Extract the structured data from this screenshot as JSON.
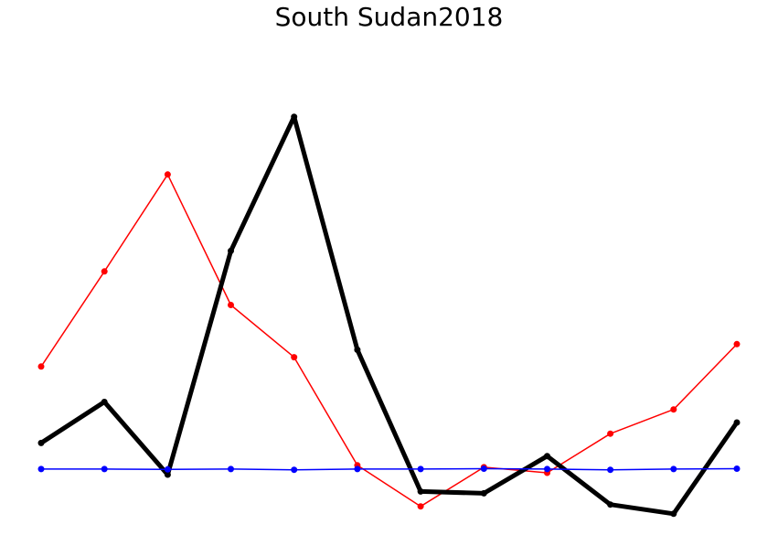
{
  "chart_data": {
    "type": "line",
    "title": "South Sudan2018",
    "x": [
      1,
      2,
      3,
      4,
      5,
      6,
      7,
      8,
      9,
      10,
      11,
      12
    ],
    "ylim": [
      -1.4,
      11.6
    ],
    "axes_visible": false,
    "grid": false,
    "series": [
      {
        "color": "#ff0000",
        "line_width": 1.5,
        "values": [
          2.75,
          5.3,
          7.9,
          4.4,
          3.0,
          0.1,
          -1.0,
          0.05,
          -0.1,
          0.95,
          1.6,
          3.35
        ]
      },
      {
        "color": "#000000",
        "line_width": 5,
        "values": [
          0.7,
          1.8,
          -0.15,
          5.85,
          9.45,
          3.2,
          -0.6,
          -0.65,
          0.35,
          -0.95,
          -1.2,
          1.25
        ]
      },
      {
        "color": "#0000ff",
        "line_width": 1.5,
        "values": [
          0.0,
          0.0,
          -0.01,
          0.0,
          -0.02,
          0.0,
          0.0,
          0.01,
          0.0,
          -0.02,
          0.0,
          0.01
        ]
      }
    ]
  }
}
